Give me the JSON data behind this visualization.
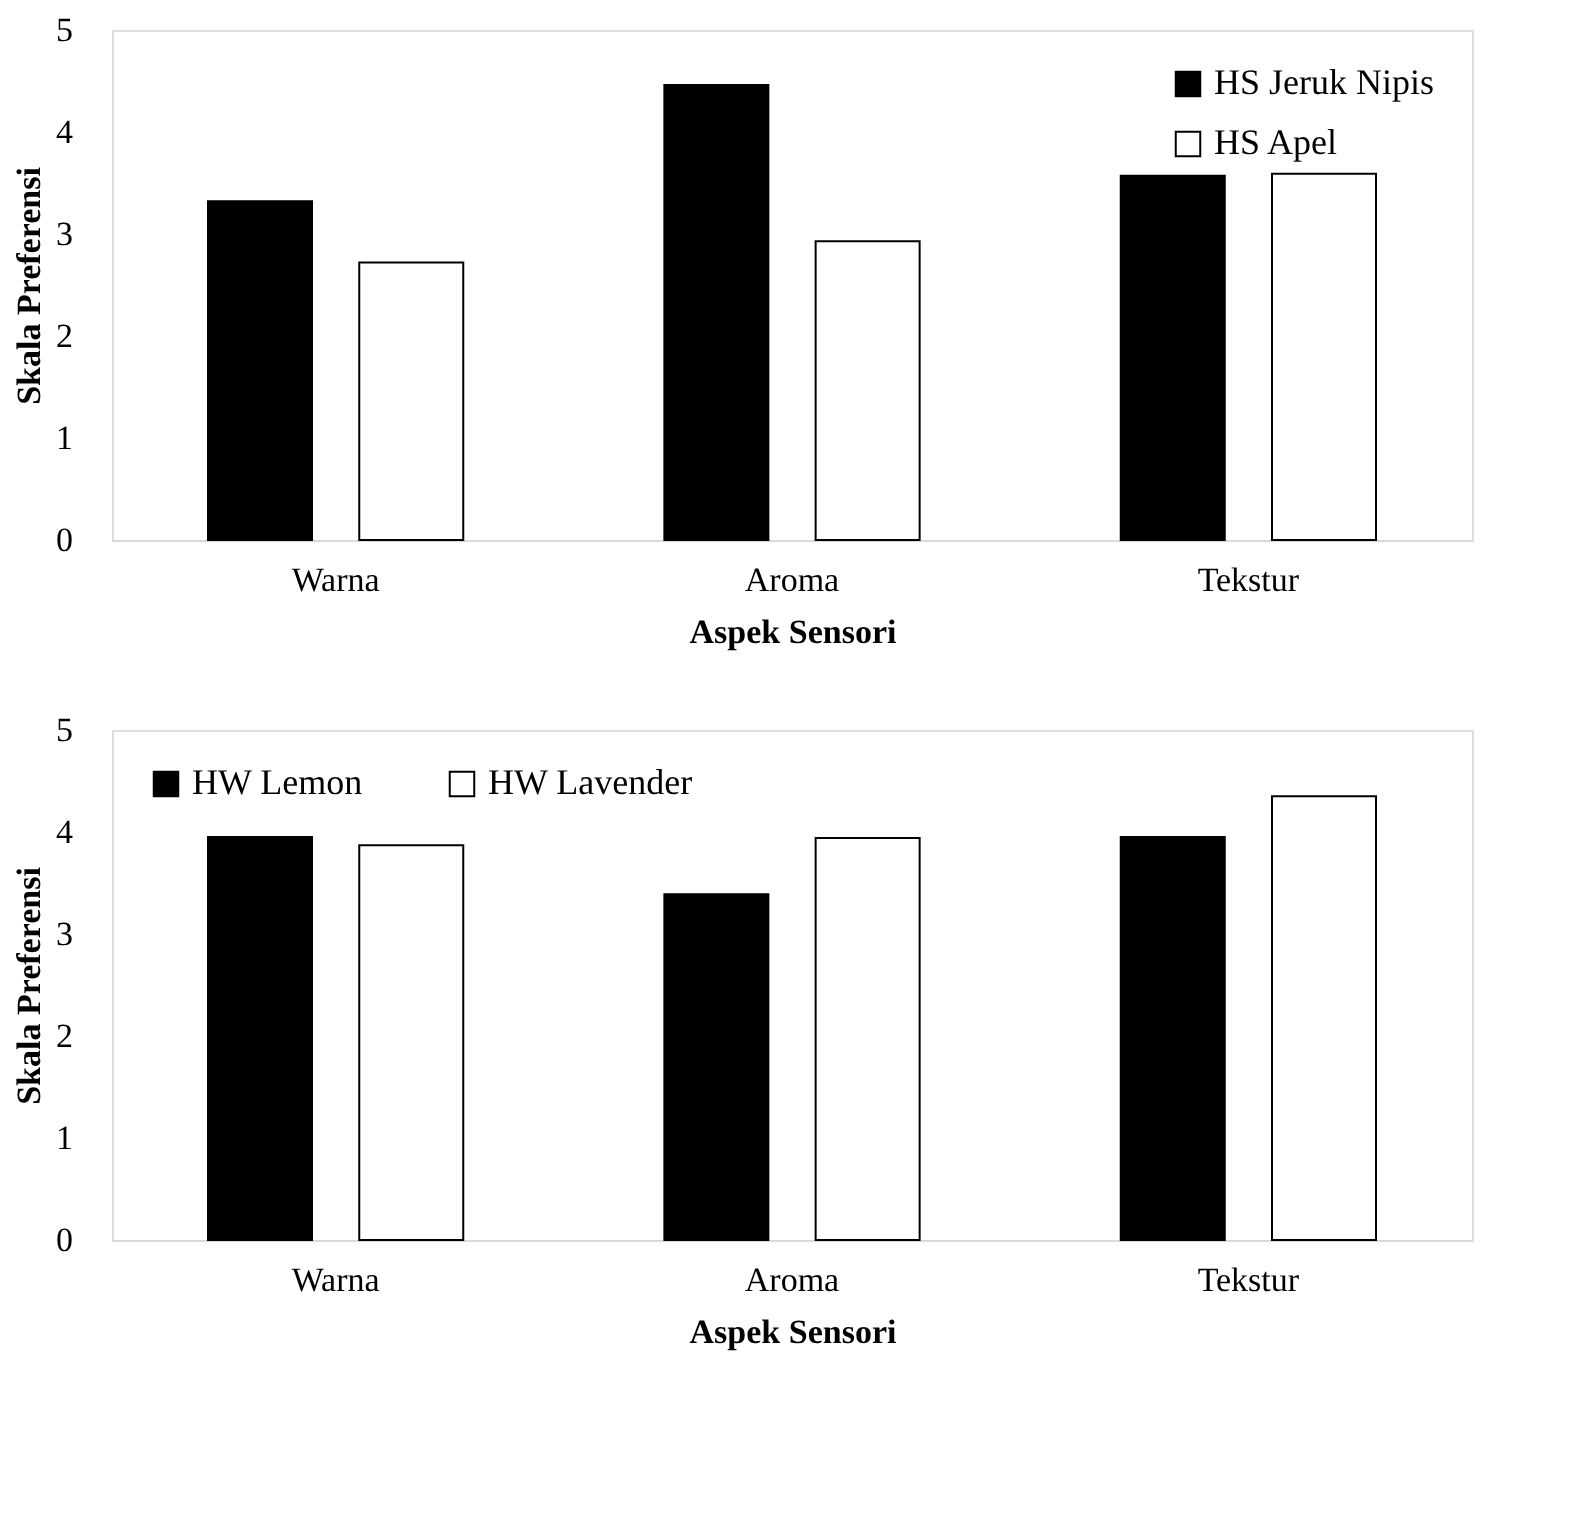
{
  "chart_data": [
    {
      "type": "bar",
      "xlabel": "Aspek Sensori",
      "ylabel": "Skala Preferensi",
      "categories": [
        "Warna",
        "Aroma",
        "Tekstur"
      ],
      "series": [
        {
          "name": "HS Jeruk Nipis",
          "color": "#000000",
          "values": [
            3.32,
            4.46,
            3.57
          ]
        },
        {
          "name": "HS Apel",
          "color": "#ffffff",
          "values": [
            2.72,
            2.93,
            3.59
          ]
        }
      ],
      "ylim": [
        0,
        5
      ],
      "yticks": [
        0,
        1,
        2,
        3,
        4,
        5
      ],
      "grid": false,
      "legend": "top right"
    },
    {
      "type": "bar",
      "xlabel": "Aspek Sensori",
      "ylabel": "Skala Preferensi",
      "categories": [
        "Warna",
        "Aroma",
        "Tekstur"
      ],
      "series": [
        {
          "name": "HW Lemon",
          "color": "#000000",
          "values": [
            3.95,
            3.39,
            3.95
          ]
        },
        {
          "name": "HW Lavender",
          "color": "#ffffff",
          "values": [
            3.87,
            3.94,
            4.35
          ]
        }
      ],
      "ylim": [
        0,
        5
      ],
      "yticks": [
        0,
        1,
        2,
        3,
        4,
        5
      ],
      "grid": false,
      "legend": "top left"
    }
  ]
}
